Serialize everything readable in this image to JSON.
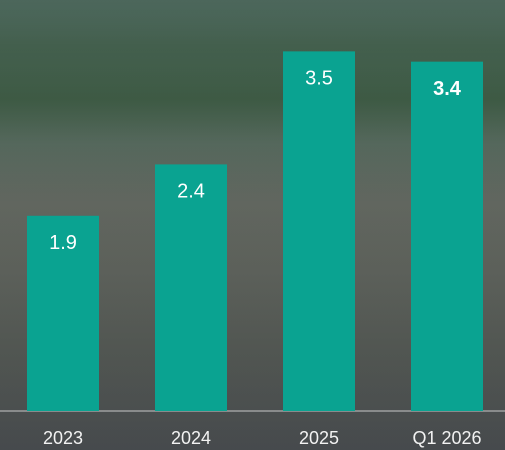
{
  "chart_data": {
    "type": "bar",
    "categories": [
      "2023",
      "2024",
      "2025",
      "Q1 2026"
    ],
    "values": [
      1.9,
      2.4,
      3.5,
      3.4
    ],
    "value_label_bold": [
      false,
      false,
      false,
      true
    ],
    "color": "#0aa391",
    "ylim": [
      0,
      4
    ]
  }
}
